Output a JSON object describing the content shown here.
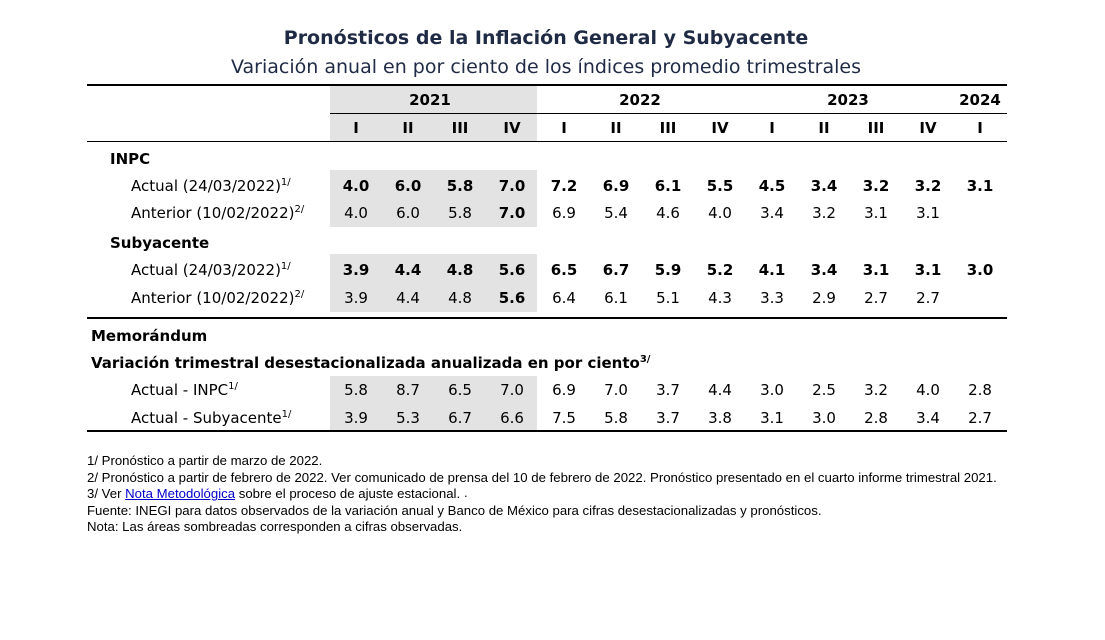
{
  "title": "Pronósticos de la Inflación General y Subyacente",
  "subtitle": "Variación anual en por ciento de los índices promedio trimestrales",
  "years": [
    "2021",
    "2022",
    "2023",
    "2024"
  ],
  "quarters": [
    "I",
    "II",
    "III",
    "IV",
    "I",
    "II",
    "III",
    "IV",
    "I",
    "II",
    "III",
    "IV",
    "I"
  ],
  "sections": {
    "inpc": "INPC",
    "subyacente": "Subyacente",
    "memorandum": "Memorándum",
    "variacion": "Variación trimestral desestacionalizada anualizada en por ciento"
  },
  "superscripts": {
    "s1": "1/",
    "s2": "2/",
    "s3": "3/"
  },
  "rows": [
    {
      "label": "Actual (24/03/2022)",
      "sup": "1/",
      "values": [
        "4.0",
        "6.0",
        "5.8",
        "7.0",
        "7.2",
        "6.9",
        "6.1",
        "5.5",
        "4.5",
        "3.4",
        "3.2",
        "3.2",
        "3.1"
      ]
    },
    {
      "label": "Anterior (10/02/2022)",
      "sup": "2/",
      "values": [
        "4.0",
        "6.0",
        "5.8",
        "7.0",
        "6.9",
        "5.4",
        "4.6",
        "4.0",
        "3.4",
        "3.2",
        "3.1",
        "3.1",
        ""
      ]
    },
    {
      "label": "Actual (24/03/2022)",
      "sup": "1/",
      "values": [
        "3.9",
        "4.4",
        "4.8",
        "5.6",
        "6.5",
        "6.7",
        "5.9",
        "5.2",
        "4.1",
        "3.4",
        "3.1",
        "3.1",
        "3.0"
      ]
    },
    {
      "label": "Anterior (10/02/2022)",
      "sup": "2/",
      "values": [
        "3.9",
        "4.4",
        "4.8",
        "5.6",
        "6.4",
        "6.1",
        "5.1",
        "4.3",
        "3.3",
        "2.9",
        "2.7",
        "2.7",
        ""
      ]
    },
    {
      "label": "Actual - INPC",
      "sup": "1/",
      "values": [
        "5.8",
        "8.7",
        "6.5",
        "7.0",
        "6.9",
        "7.0",
        "3.7",
        "4.4",
        "3.0",
        "2.5",
        "3.2",
        "4.0",
        "2.8"
      ]
    },
    {
      "label": "Actual - Subyacente",
      "sup": "1/",
      "values": [
        "3.9",
        "5.3",
        "6.7",
        "6.6",
        "7.5",
        "5.8",
        "3.7",
        "3.8",
        "3.1",
        "3.0",
        "2.8",
        "3.4",
        "2.7"
      ]
    }
  ],
  "notes": {
    "n1": "1/ Pronóstico a partir de marzo de 2022.",
    "n2": "2/ Pronóstico a partir de febrero de 2022. Ver comunicado de prensa del 10 de febrero de 2022. Pronóstico presentado en el cuarto informe trimestral 2021.",
    "n3_pre": "3/ Ver ",
    "n3_link": "Nota Metodológica",
    "n3_post": " sobre el proceso de ajuste estacional.",
    "fuente": "Fuente: INEGI para datos observados de la variación anual y Banco de México para cifras desestacionalizadas y pronósticos.",
    "nota": "Nota: Las áreas sombreadas corresponden a cifras observadas."
  }
}
